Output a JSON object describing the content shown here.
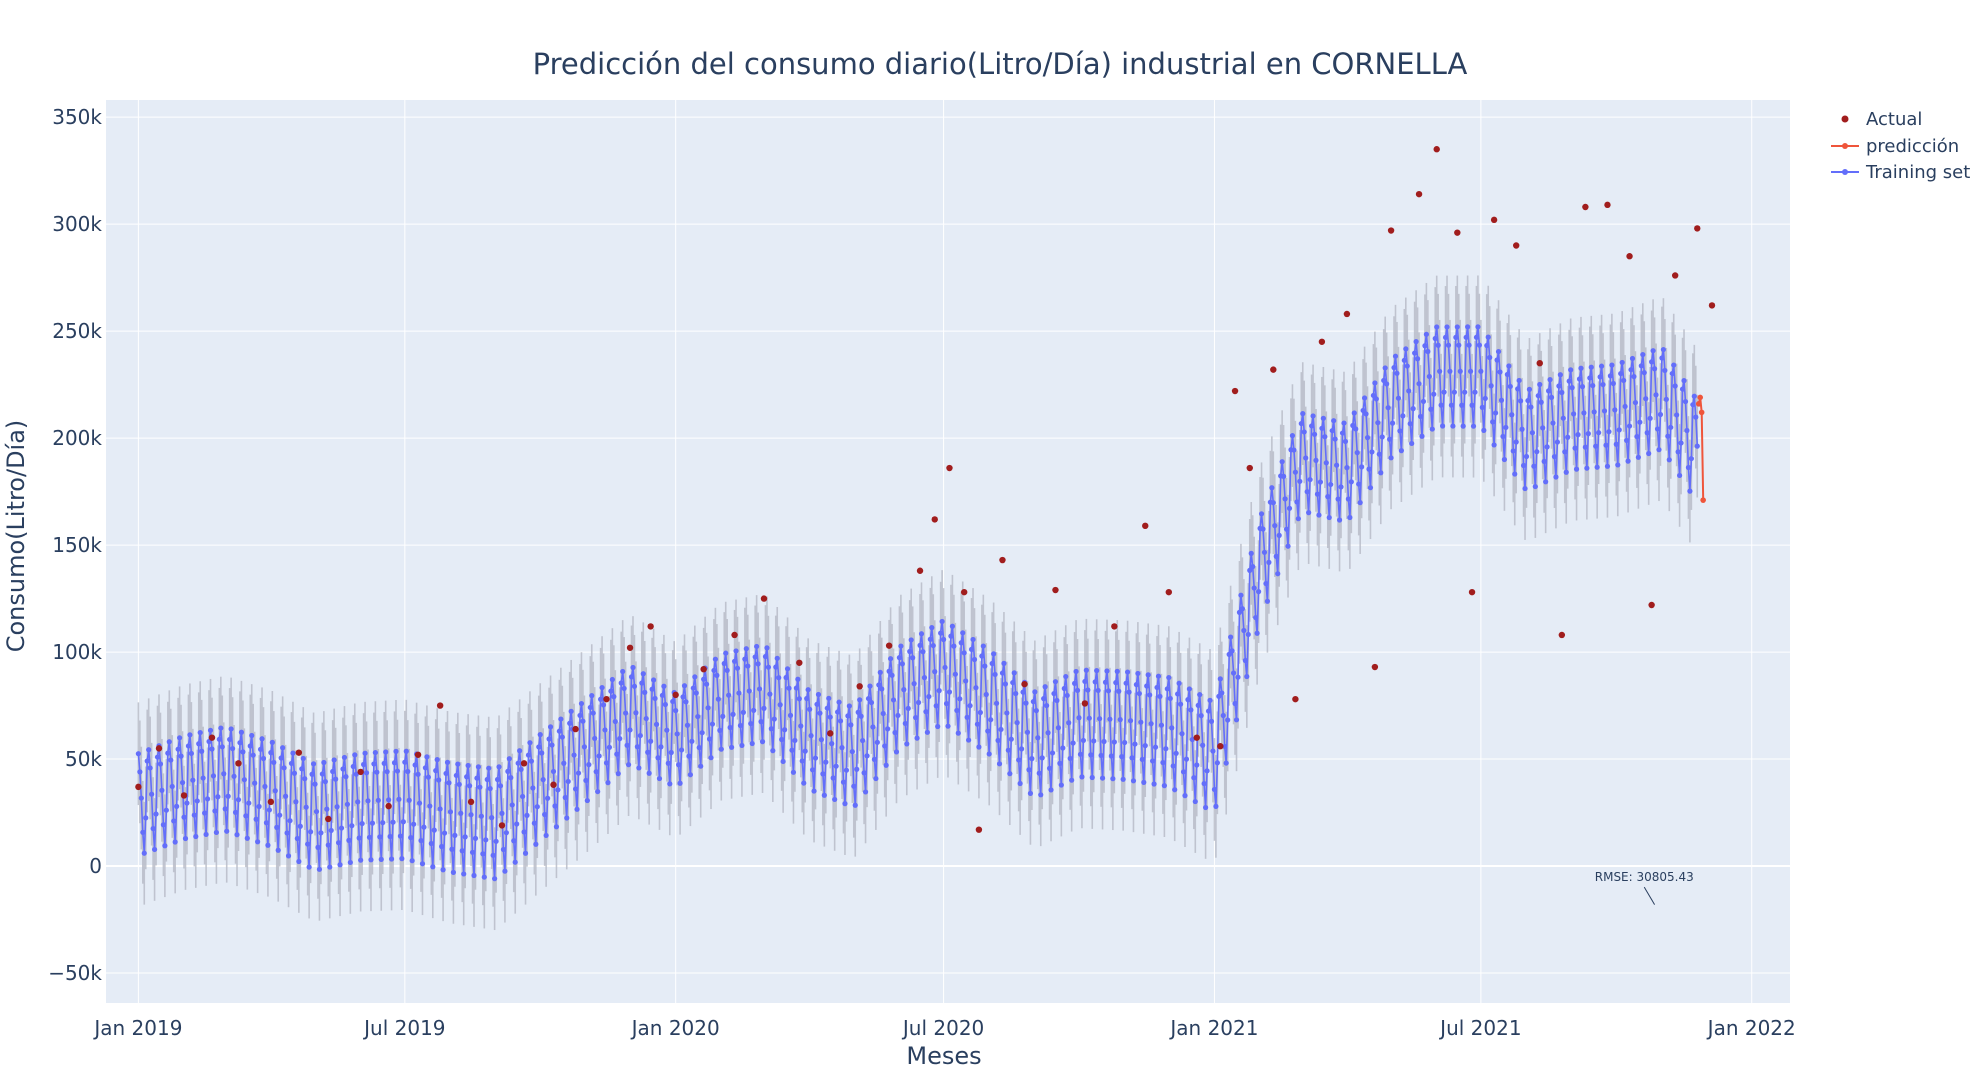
{
  "chart_data": {
    "type": "line",
    "title": "Predicción del consumo diario(Litro/Día) industrial en CORNELLA",
    "xlabel": "Meses",
    "ylabel": "Consumo(Litro/Día)",
    "x_range": [
      "2018-12-10",
      "2022-01-27"
    ],
    "ylim": [
      -64000,
      358000
    ],
    "x_ticks": [
      {
        "date": "2019-01-01",
        "label": "Jan 2019"
      },
      {
        "date": "2019-07-01",
        "label": "Jul 2019"
      },
      {
        "date": "2020-01-01",
        "label": "Jan 2020"
      },
      {
        "date": "2020-07-01",
        "label": "Jul 2020"
      },
      {
        "date": "2021-01-01",
        "label": "Jan 2021"
      },
      {
        "date": "2021-07-01",
        "label": "Jul 2021"
      },
      {
        "date": "2022-01-01",
        "label": "Jan 2022"
      }
    ],
    "y_ticks": [
      {
        "value": -50000,
        "label": "−50k"
      },
      {
        "value": 0,
        "label": "0"
      },
      {
        "value": 50000,
        "label": "50k"
      },
      {
        "value": 100000,
        "label": "100k"
      },
      {
        "value": 150000,
        "label": "150k"
      },
      {
        "value": 200000,
        "label": "200k"
      },
      {
        "value": 250000,
        "label": "250k"
      },
      {
        "value": 300000,
        "label": "300k"
      },
      {
        "value": 350000,
        "label": "350k"
      }
    ],
    "grid": true,
    "legend_position": "top-right",
    "series": [
      {
        "name": "Actual",
        "mode": "markers",
        "color": "#a11d1d",
        "points": [
          [
            "2019-01-01",
            37000
          ],
          [
            "2019-01-15",
            55000
          ],
          [
            "2019-02-01",
            33000
          ],
          [
            "2019-02-20",
            60000
          ],
          [
            "2019-03-10",
            48000
          ],
          [
            "2019-04-01",
            30000
          ],
          [
            "2019-04-20",
            53000
          ],
          [
            "2019-05-10",
            22000
          ],
          [
            "2019-06-01",
            44000
          ],
          [
            "2019-06-20",
            28000
          ],
          [
            "2019-07-10",
            52000
          ],
          [
            "2019-07-25",
            75000
          ],
          [
            "2019-08-15",
            30000
          ],
          [
            "2019-09-05",
            19000
          ],
          [
            "2019-09-20",
            48000
          ],
          [
            "2019-10-10",
            38000
          ],
          [
            "2019-10-25",
            64000
          ],
          [
            "2019-11-15",
            78000
          ],
          [
            "2019-12-01",
            102000
          ],
          [
            "2019-12-15",
            112000
          ],
          [
            "2020-01-01",
            80000
          ],
          [
            "2020-01-20",
            92000
          ],
          [
            "2020-02-10",
            108000
          ],
          [
            "2020-03-01",
            125000
          ],
          [
            "2020-03-25",
            95000
          ],
          [
            "2020-04-15",
            62000
          ],
          [
            "2020-05-05",
            84000
          ],
          [
            "2020-05-25",
            103000
          ],
          [
            "2020-06-15",
            138000
          ],
          [
            "2020-06-25",
            162000
          ],
          [
            "2020-07-05",
            186000
          ],
          [
            "2020-07-15",
            128000
          ],
          [
            "2020-07-25",
            17000
          ],
          [
            "2020-08-10",
            143000
          ],
          [
            "2020-08-25",
            85000
          ],
          [
            "2020-09-15",
            129000
          ],
          [
            "2020-10-05",
            76000
          ],
          [
            "2020-10-25",
            112000
          ],
          [
            "2020-11-15",
            159000
          ],
          [
            "2020-12-01",
            128000
          ],
          [
            "2020-12-20",
            60000
          ],
          [
            "2021-01-05",
            56000
          ],
          [
            "2021-01-15",
            222000
          ],
          [
            "2021-01-25",
            186000
          ],
          [
            "2021-02-10",
            232000
          ],
          [
            "2021-02-25",
            78000
          ],
          [
            "2021-03-15",
            245000
          ],
          [
            "2021-04-01",
            258000
          ],
          [
            "2021-04-20",
            93000
          ],
          [
            "2021-05-01",
            297000
          ],
          [
            "2021-05-20",
            314000
          ],
          [
            "2021-06-01",
            335000
          ],
          [
            "2021-06-15",
            296000
          ],
          [
            "2021-06-25",
            128000
          ],
          [
            "2021-07-10",
            302000
          ],
          [
            "2021-07-25",
            290000
          ],
          [
            "2021-08-10",
            235000
          ],
          [
            "2021-08-25",
            108000
          ],
          [
            "2021-09-10",
            308000
          ],
          [
            "2021-09-25",
            309000
          ],
          [
            "2021-10-10",
            285000
          ],
          [
            "2021-10-25",
            122000
          ],
          [
            "2021-11-10",
            276000
          ],
          [
            "2021-11-25",
            298000
          ],
          [
            "2021-12-05",
            262000
          ]
        ]
      },
      {
        "name": "predicción",
        "mode": "lines+markers",
        "color": "#ef553b",
        "points": [
          [
            "2021-11-26",
            216000
          ],
          [
            "2021-11-27",
            219000
          ],
          [
            "2021-11-28",
            212000
          ],
          [
            "2021-11-29",
            171000
          ]
        ]
      },
      {
        "name": "Training set",
        "mode": "lines+markers",
        "color": "#636efa",
        "band_color": "#b8bcc8",
        "trend": [
          [
            "2019-01-01",
            30000
          ],
          [
            "2019-02-01",
            38000
          ],
          [
            "2019-03-01",
            42000
          ],
          [
            "2019-04-01",
            35000
          ],
          [
            "2019-05-01",
            24000
          ],
          [
            "2019-06-01",
            29000
          ],
          [
            "2019-07-01",
            30000
          ],
          [
            "2019-08-01",
            24000
          ],
          [
            "2019-09-01",
            21000
          ],
          [
            "2019-10-01",
            38000
          ],
          [
            "2019-11-01",
            55000
          ],
          [
            "2019-12-01",
            72000
          ],
          [
            "2020-01-01",
            60000
          ],
          [
            "2020-02-01",
            78000
          ],
          [
            "2020-03-01",
            82000
          ],
          [
            "2020-04-01",
            60000
          ],
          [
            "2020-05-01",
            52000
          ],
          [
            "2020-06-01",
            80000
          ],
          [
            "2020-07-01",
            92000
          ],
          [
            "2020-08-01",
            78000
          ],
          [
            "2020-09-01",
            58000
          ],
          [
            "2020-10-01",
            68000
          ],
          [
            "2020-11-01",
            67000
          ],
          [
            "2020-12-01",
            64000
          ],
          [
            "2021-01-01",
            52000
          ],
          [
            "2021-02-01",
            140000
          ],
          [
            "2021-03-01",
            190000
          ],
          [
            "2021-04-01",
            185000
          ],
          [
            "2021-05-01",
            215000
          ],
          [
            "2021-06-01",
            230000
          ],
          [
            "2021-07-01",
            230000
          ],
          [
            "2021-08-01",
            200000
          ],
          [
            "2021-09-01",
            210000
          ],
          [
            "2021-10-01",
            212000
          ],
          [
            "2021-11-01",
            220000
          ],
          [
            "2021-11-25",
            195000
          ]
        ],
        "weekly_amplitude": [
          [
            "2019-01-01",
            25000
          ],
          [
            "2019-09-01",
            27000
          ],
          [
            "2020-01-01",
            23000
          ],
          [
            "2020-09-01",
            26000
          ],
          [
            "2021-01-01",
            27000
          ],
          [
            "2021-03-01",
            24000
          ],
          [
            "2021-11-25",
            25000
          ]
        ],
        "band_halfwidth": 24000
      }
    ],
    "annotations": [
      {
        "text": "RMSE: 30805.43",
        "x": "2021-10-27",
        "y": -18000,
        "ax": "2021-10-20",
        "ay": -8000
      }
    ]
  }
}
